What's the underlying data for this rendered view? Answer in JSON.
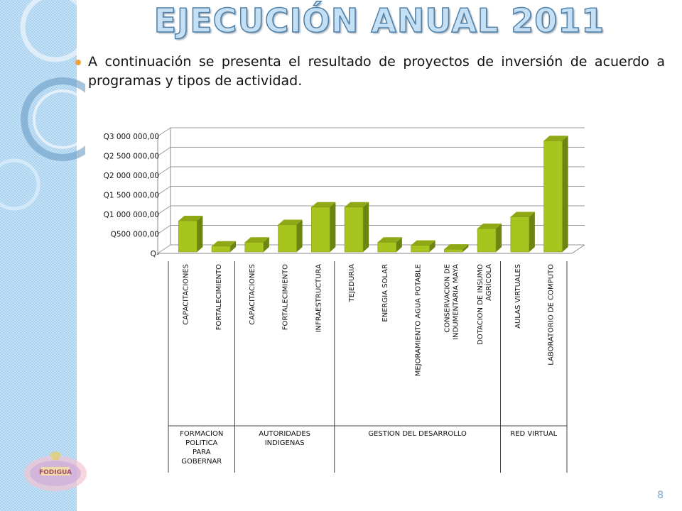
{
  "slide": {
    "title": "EJECUCIÓN ANUAL 2011",
    "intro": "A continuación se presenta el resultado de proyectos de inversión de acuerdo a programas y tipos de actividad.",
    "page_number": "8",
    "logo_text": "FODIGUA"
  },
  "colors": {
    "bar_front": "#a8c41e",
    "bar_side": "#6c8410",
    "bar_top": "#8fa816",
    "title_fill": "#c5e0f4",
    "sidebar": "#a9d1f0"
  },
  "chart_data": {
    "type": "bar",
    "title": "",
    "ylim": [
      0,
      3000000
    ],
    "yticks": [
      0,
      500000,
      1000000,
      1500000,
      2000000,
      2500000,
      3000000
    ],
    "ytick_labels": [
      "Q-",
      "Q500 000,00",
      "Q1 000 000,00",
      "Q1 500 000,00",
      "Q2 000 000,00",
      "Q2 500 000,00",
      "Q3 000 000,00"
    ],
    "categories": [
      "CAPACITACIONES",
      "FORTALECIMIENTO",
      "CAPACITACIONES",
      "FORTALECIMIENTO",
      "INFRAESTRUCTURA",
      "TEJEDURIA",
      "ENERGIA SOLAR",
      "MEJORAMIENTO AGUA POTABLE",
      "CONSERVACION DE INDUMENTARIA MAYA",
      "DOTACION DE INSUMO AGRÍCOLA",
      "AULAS VIRTUALES",
      "LABORATORIO DE COMPUTO"
    ],
    "values": [
      800000,
      150000,
      250000,
      700000,
      1150000,
      1150000,
      250000,
      170000,
      70000,
      600000,
      900000,
      2850000
    ],
    "groups": [
      {
        "name": "FORMACION POLITICA PARA GOBERNAR",
        "start": 0,
        "count": 2
      },
      {
        "name": "AUTORIDADES INDIGENAS",
        "start": 2,
        "count": 3
      },
      {
        "name": "GESTION DEL DESARROLLO",
        "start": 5,
        "count": 5
      },
      {
        "name": "RED VIRTUAL",
        "start": 10,
        "count": 2
      }
    ],
    "grid": true
  }
}
